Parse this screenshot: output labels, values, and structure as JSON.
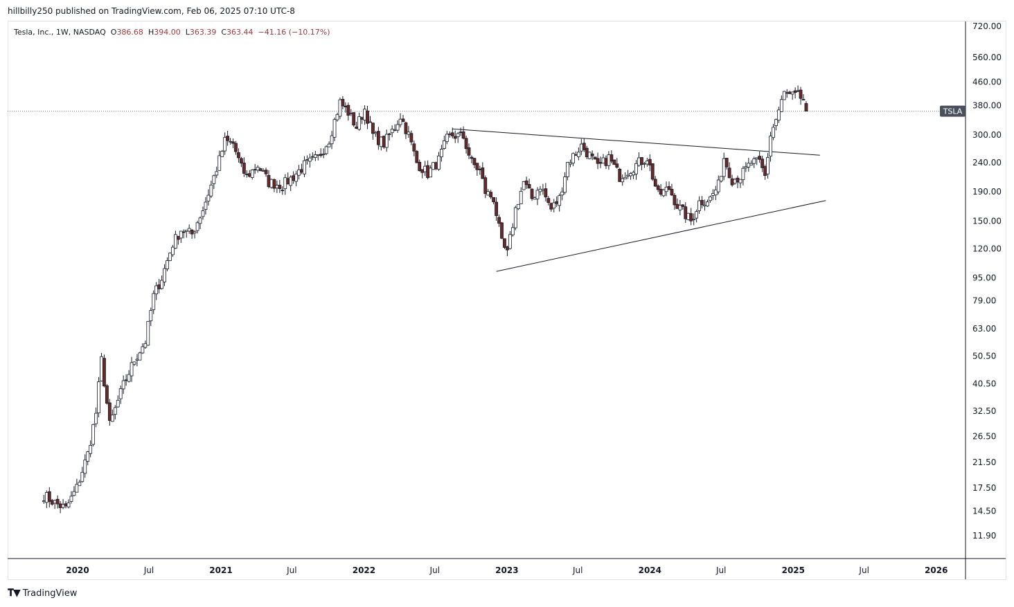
{
  "header": {
    "published_line": "hillbilly250 published on TradingView.com, Feb 06, 2025 07:10 UTC-8"
  },
  "legend": {
    "symbol_desc": "Tesla, Inc., 1W, NASDAQ",
    "open_label": "O",
    "open": "386.68",
    "high_label": "H",
    "high": "394.00",
    "low_label": "L",
    "low": "363.39",
    "close_label": "C",
    "close": "363.44",
    "change": "−41.16 (−10.17%)"
  },
  "footer": {
    "brand": "TradingView",
    "logo_icon": "tradingview-logo-icon"
  },
  "colors": {
    "up": "#ffffff",
    "down": "#6b2a2a",
    "wick": "#131722",
    "axis_badge": "#4a4f5c"
  },
  "chart_data": {
    "type": "candlestick",
    "symbol": "TSLA",
    "interval": "1W",
    "y_scale": "log",
    "last_price": 363.44,
    "y_ticks": [
      "720.00",
      "560.00",
      "460.00",
      "380.00",
      "300.00",
      "240.00",
      "190.00",
      "150.00",
      "120.00",
      "95.00",
      "79.00",
      "63.00",
      "50.50",
      "40.50",
      "32.50",
      "26.50",
      "21.50",
      "17.50",
      "14.50",
      "11.90"
    ],
    "x_ticks": [
      "2020",
      "Jul",
      "2021",
      "Jul",
      "2022",
      "Jul",
      "2023",
      "Jul",
      "2024",
      "Jul",
      "2025",
      "Jul",
      "2026"
    ],
    "x_tick_dates": [
      "2020-01-01",
      "2020-07-01",
      "2021-01-01",
      "2021-07-01",
      "2022-01-01",
      "2022-07-01",
      "2023-01-01",
      "2023-07-01",
      "2024-01-01",
      "2024-07-01",
      "2025-01-01",
      "2025-07-01",
      "2026-01-01"
    ],
    "price_badge": "TSLA",
    "trendlines": [
      {
        "name": "upper",
        "from": [
          "2022-08-15",
          315
        ],
        "to": [
          "2025-03-10",
          255
        ]
      },
      {
        "name": "lower",
        "from": [
          "2022-12-05",
          100
        ],
        "to": [
          "2025-03-25",
          177
        ]
      }
    ],
    "anchors": [
      [
        "2019-10-07",
        16.5
      ],
      [
        "2019-11-04",
        15.5
      ],
      [
        "2019-12-02",
        14.8
      ],
      [
        "2019-12-30",
        17.5
      ],
      [
        "2020-01-27",
        23
      ],
      [
        "2020-02-17",
        32
      ],
      [
        "2020-03-02",
        49
      ],
      [
        "2020-03-23",
        29
      ],
      [
        "2020-04-27",
        40
      ],
      [
        "2020-05-25",
        49
      ],
      [
        "2020-06-22",
        57
      ],
      [
        "2020-07-13",
        82
      ],
      [
        "2020-08-03",
        95
      ],
      [
        "2020-08-31",
        125
      ],
      [
        "2020-09-21",
        140
      ],
      [
        "2020-10-19",
        135
      ],
      [
        "2020-11-16",
        165
      ],
      [
        "2020-12-07",
        200
      ],
      [
        "2020-12-28",
        245
      ],
      [
        "2021-01-11",
        285
      ],
      [
        "2021-02-01",
        280
      ],
      [
        "2021-02-22",
        230
      ],
      [
        "2021-03-08",
        215
      ],
      [
        "2021-04-05",
        235
      ],
      [
        "2021-05-03",
        205
      ],
      [
        "2021-06-07",
        200
      ],
      [
        "2021-07-05",
        215
      ],
      [
        "2021-08-02",
        235
      ],
      [
        "2021-09-06",
        250
      ],
      [
        "2021-10-04",
        290
      ],
      [
        "2021-11-01",
        390
      ],
      [
        "2021-11-22",
        360
      ],
      [
        "2021-12-13",
        320
      ],
      [
        "2022-01-03",
        370
      ],
      [
        "2022-01-24",
        300
      ],
      [
        "2022-02-21",
        280
      ],
      [
        "2022-03-21",
        320
      ],
      [
        "2022-04-04",
        350
      ],
      [
        "2022-04-25",
        300
      ],
      [
        "2022-05-16",
        240
      ],
      [
        "2022-06-13",
        220
      ],
      [
        "2022-07-11",
        245
      ],
      [
        "2022-08-01",
        290
      ],
      [
        "2022-08-15",
        300
      ],
      [
        "2022-09-12",
        295
      ],
      [
        "2022-10-03",
        240
      ],
      [
        "2022-10-24",
        225
      ],
      [
        "2022-11-07",
        190
      ],
      [
        "2022-11-28",
        180
      ],
      [
        "2022-12-19",
        125
      ],
      [
        "2023-01-02",
        115
      ],
      [
        "2023-01-23",
        165
      ],
      [
        "2023-02-13",
        205
      ],
      [
        "2023-03-06",
        180
      ],
      [
        "2023-03-27",
        200
      ],
      [
        "2023-04-24",
        165
      ],
      [
        "2023-05-15",
        180
      ],
      [
        "2023-06-05",
        240
      ],
      [
        "2023-07-10",
        275
      ],
      [
        "2023-07-31",
        255
      ],
      [
        "2023-08-21",
        230
      ],
      [
        "2023-09-18",
        250
      ],
      [
        "2023-10-16",
        215
      ],
      [
        "2023-11-06",
        225
      ],
      [
        "2023-12-04",
        240
      ],
      [
        "2023-12-25",
        250
      ],
      [
        "2024-01-22",
        185
      ],
      [
        "2024-02-19",
        195
      ],
      [
        "2024-03-11",
        170
      ],
      [
        "2024-04-15",
        150
      ],
      [
        "2024-05-06",
        175
      ],
      [
        "2024-06-03",
        180
      ],
      [
        "2024-06-24",
        200
      ],
      [
        "2024-07-08",
        250
      ],
      [
        "2024-07-29",
        210
      ],
      [
        "2024-08-19",
        215
      ],
      [
        "2024-09-16",
        240
      ],
      [
        "2024-10-07",
        240
      ],
      [
        "2024-10-21",
        215
      ],
      [
        "2024-11-04",
        300
      ],
      [
        "2024-11-18",
        340
      ],
      [
        "2024-12-09",
        420
      ],
      [
        "2024-12-23",
        410
      ],
      [
        "2025-01-13",
        410
      ],
      [
        "2025-01-27",
        400
      ],
      [
        "2025-02-03",
        363.44
      ]
    ]
  }
}
